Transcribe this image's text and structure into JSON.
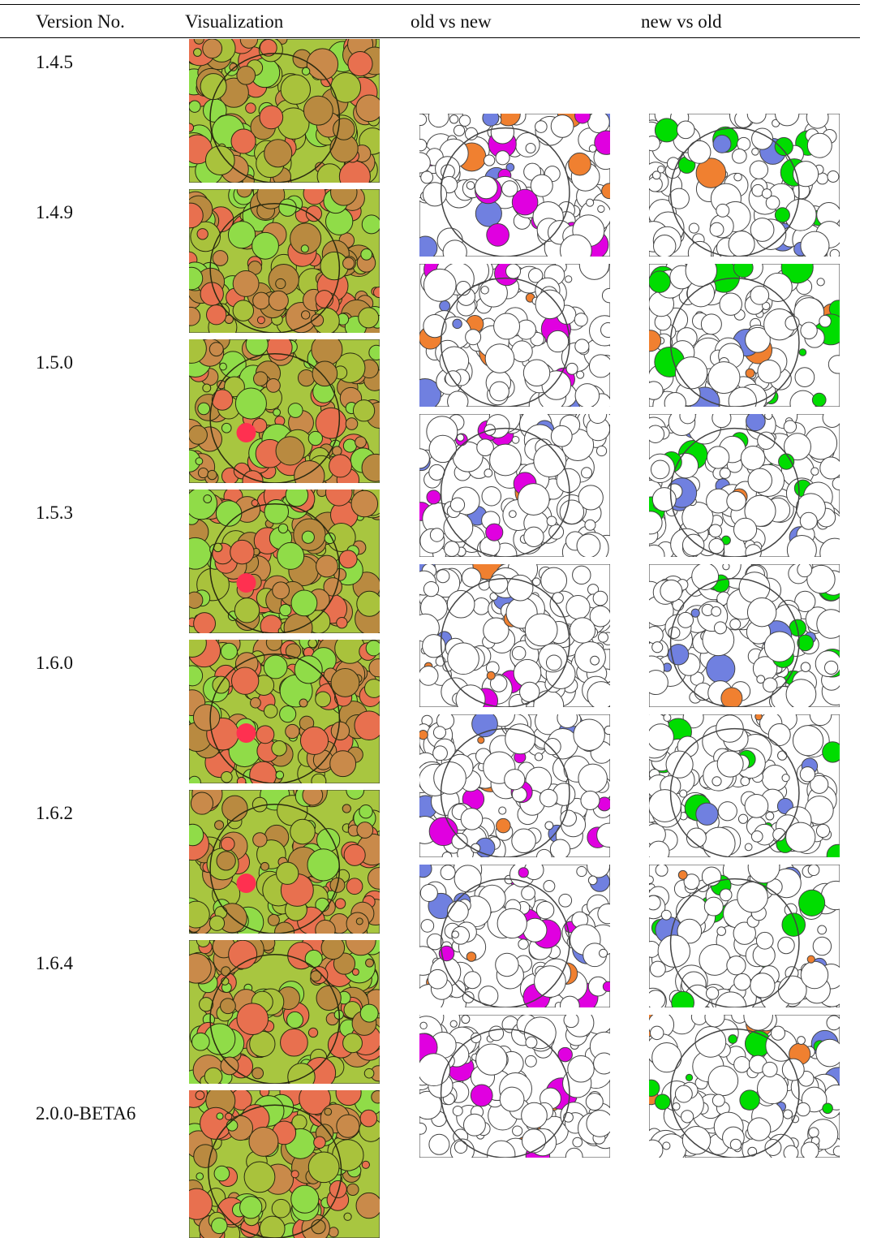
{
  "table": {
    "header": [
      "Version No.",
      "Visualization",
      "old vs new",
      "new vs old"
    ],
    "rows": [
      "1.4.5",
      "1.4.9",
      "1.5.0",
      "1.5.3",
      "1.6.0",
      "1.6.2",
      "1.6.4",
      "2.0.0-BETA6"
    ]
  }
}
